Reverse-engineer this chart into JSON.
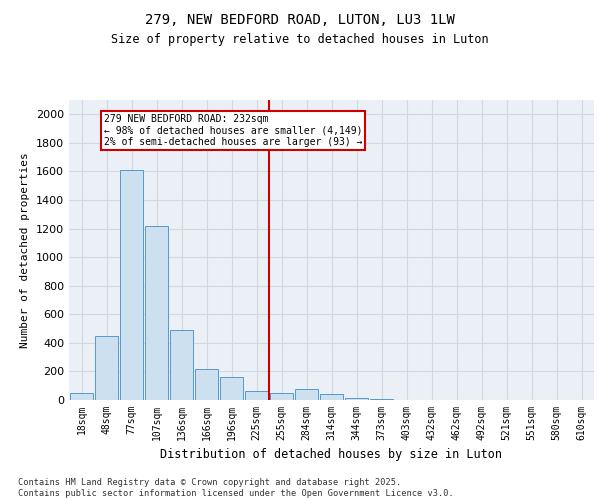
{
  "title1": "279, NEW BEDFORD ROAD, LUTON, LU3 1LW",
  "title2": "Size of property relative to detached houses in Luton",
  "xlabel": "Distribution of detached houses by size in Luton",
  "ylabel": "Number of detached properties",
  "categories": [
    "18sqm",
    "48sqm",
    "77sqm",
    "107sqm",
    "136sqm",
    "166sqm",
    "196sqm",
    "225sqm",
    "255sqm",
    "284sqm",
    "314sqm",
    "344sqm",
    "373sqm",
    "403sqm",
    "432sqm",
    "462sqm",
    "492sqm",
    "521sqm",
    "551sqm",
    "580sqm",
    "610sqm"
  ],
  "values": [
    50,
    450,
    1610,
    1220,
    490,
    220,
    160,
    65,
    50,
    75,
    40,
    15,
    5,
    0,
    0,
    0,
    0,
    0,
    0,
    0,
    0
  ],
  "bar_color": "#cce0f0",
  "bar_edge_color": "#5599cc",
  "vline_color": "#cc0000",
  "annotation_text": "279 NEW BEDFORD ROAD: 232sqm\n← 98% of detached houses are smaller (4,149)\n2% of semi-detached houses are larger (93) →",
  "annotation_box_color": "#cc0000",
  "ylim": [
    0,
    2100
  ],
  "yticks": [
    0,
    200,
    400,
    600,
    800,
    1000,
    1200,
    1400,
    1600,
    1800,
    2000
  ],
  "grid_color": "#d0d8e0",
  "bg_color": "#eaf0f6",
  "footer": "Contains HM Land Registry data © Crown copyright and database right 2025.\nContains public sector information licensed under the Open Government Licence v3.0."
}
